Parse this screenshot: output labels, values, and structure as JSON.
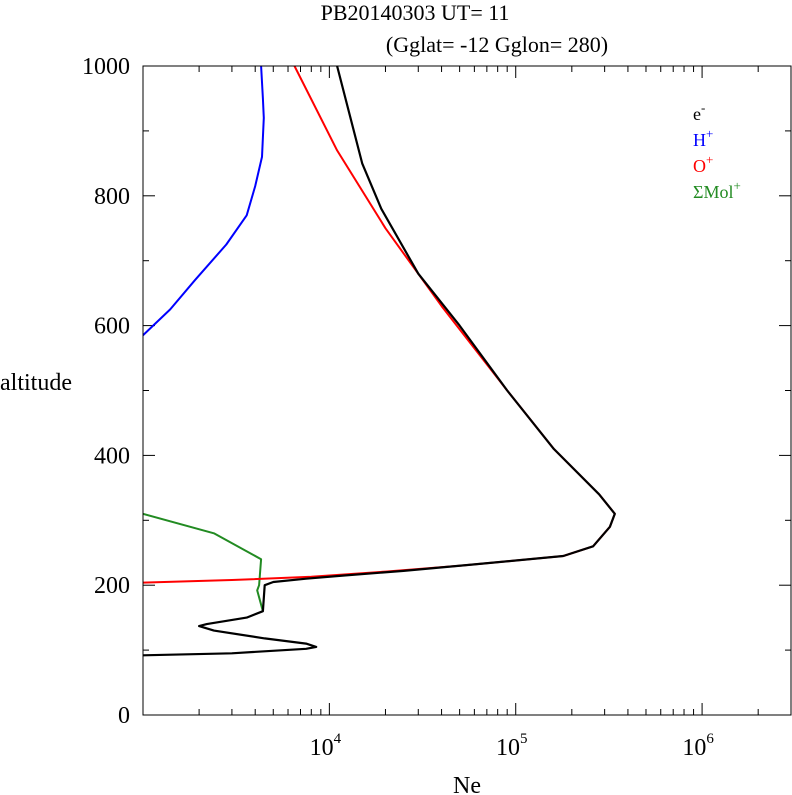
{
  "chart_data": {
    "type": "line",
    "title": "PB20140303   UT=  11",
    "subtitle": "(Gglat= -12   Gglon=  280)",
    "xlabel": "Ne",
    "ylabel": "altitude",
    "x_scale": "log",
    "xlim": [
      1000,
      3000000
    ],
    "ylim": [
      0,
      1000
    ],
    "x_ticks": [
      {
        "value": 10000,
        "base": "10",
        "exp": "4"
      },
      {
        "value": 100000,
        "base": "10",
        "exp": "5"
      },
      {
        "value": 1000000,
        "base": "10",
        "exp": "6"
      }
    ],
    "y_ticks": [
      {
        "value": 0,
        "label": "0"
      },
      {
        "value": 200,
        "label": "200"
      },
      {
        "value": 400,
        "label": "400"
      },
      {
        "value": 600,
        "label": "600"
      },
      {
        "value": 800,
        "label": "800"
      },
      {
        "value": 1000,
        "label": "1000"
      }
    ],
    "legend_position": "top-right",
    "series": [
      {
        "name": "e-",
        "base": "e",
        "sup": "-",
        "color": "#000000",
        "points": [
          [
            11000,
            1000
          ],
          [
            15000,
            850
          ],
          [
            19000,
            780
          ],
          [
            30000,
            680
          ],
          [
            50000,
            600
          ],
          [
            90000,
            500
          ],
          [
            160000,
            410
          ],
          [
            280000,
            340
          ],
          [
            340000,
            310
          ],
          [
            320000,
            290
          ],
          [
            260000,
            260
          ],
          [
            180000,
            245
          ],
          [
            100000,
            238
          ],
          [
            60000,
            232
          ],
          [
            25000,
            222
          ],
          [
            12000,
            215
          ],
          [
            7500,
            210
          ],
          [
            5000,
            205
          ],
          [
            4500,
            200
          ],
          [
            4400,
            160
          ],
          [
            3600,
            150
          ],
          [
            2200,
            140
          ],
          [
            2000,
            137
          ],
          [
            2400,
            130
          ],
          [
            4500,
            118
          ],
          [
            7500,
            110
          ],
          [
            8500,
            105
          ],
          [
            7500,
            102
          ],
          [
            3000,
            95
          ],
          [
            1000,
            92
          ]
        ]
      },
      {
        "name": "H+",
        "base": "H",
        "sup": "+",
        "color": "#0000ff",
        "points": [
          [
            4300,
            1000
          ],
          [
            4400,
            950
          ],
          [
            4450,
            920
          ],
          [
            4350,
            860
          ],
          [
            4000,
            815
          ],
          [
            3600,
            770
          ],
          [
            2800,
            725
          ],
          [
            1900,
            670
          ],
          [
            1400,
            625
          ],
          [
            1000,
            585
          ]
        ]
      },
      {
        "name": "O+",
        "base": "O",
        "sup": "+",
        "color": "#ff0000",
        "points": [
          [
            6500,
            1000
          ],
          [
            11000,
            870
          ],
          [
            20000,
            750
          ],
          [
            40000,
            630
          ],
          [
            90000,
            500
          ],
          [
            160000,
            410
          ],
          [
            280000,
            340
          ],
          [
            340000,
            310
          ],
          [
            320000,
            290
          ],
          [
            260000,
            260
          ],
          [
            180000,
            245
          ],
          [
            100000,
            238
          ],
          [
            50000,
            230
          ],
          [
            20000,
            221
          ],
          [
            8000,
            213
          ],
          [
            3000,
            208
          ],
          [
            1000,
            204
          ]
        ]
      },
      {
        "name": "ΣMol+",
        "base": "ΣMol",
        "sup": "+",
        "color": "#228b22",
        "points": [
          [
            1000,
            310
          ],
          [
            2400,
            280
          ],
          [
            4300,
            240
          ],
          [
            4200,
            200
          ],
          [
            4100,
            192
          ],
          [
            4400,
            160
          ]
        ]
      }
    ]
  }
}
